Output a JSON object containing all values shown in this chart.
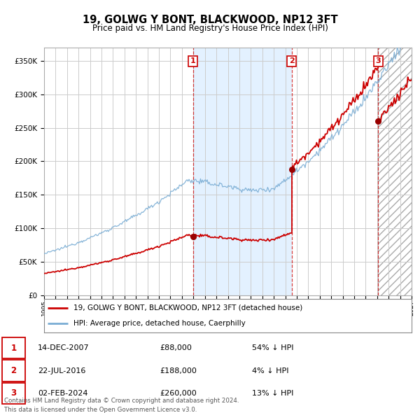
{
  "title": "19, GOLWG Y BONT, BLACKWOOD, NP12 3FT",
  "subtitle": "Price paid vs. HM Land Registry's House Price Index (HPI)",
  "legend_property": "19, GOLWG Y BONT, BLACKWOOD, NP12 3FT (detached house)",
  "legend_hpi": "HPI: Average price, detached house, Caerphilly",
  "footnote1": "Contains HM Land Registry data © Crown copyright and database right 2024.",
  "footnote2": "This data is licensed under the Open Government Licence v3.0.",
  "transactions": [
    {
      "num": 1,
      "date": "14-DEC-2007",
      "price": 88000,
      "pct": "54%",
      "direction": "↓",
      "year": 2007.96
    },
    {
      "num": 2,
      "date": "22-JUL-2016",
      "price": 188000,
      "pct": "4%",
      "direction": "↓",
      "year": 2016.55
    },
    {
      "num": 3,
      "date": "02-FEB-2024",
      "price": 260000,
      "pct": "13%",
      "direction": "↓",
      "year": 2024.09
    }
  ],
  "property_color": "#cc0000",
  "hpi_color": "#7aadd4",
  "background_color": "#ffffff",
  "grid_color": "#cccccc",
  "shade_color": "#ddeeff",
  "ylim": [
    0,
    370000
  ],
  "xlim_start": 1995,
  "xlim_end": 2027,
  "yticks": [
    0,
    50000,
    100000,
    150000,
    200000,
    250000,
    300000,
    350000
  ]
}
